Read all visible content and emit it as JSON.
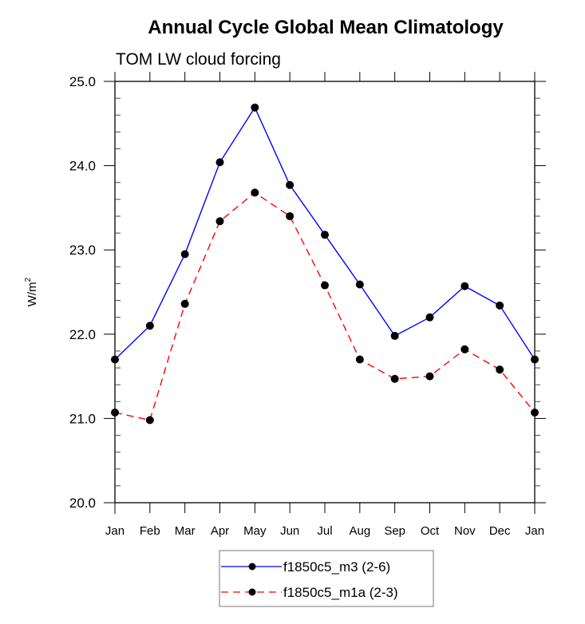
{
  "chart_data": {
    "type": "line",
    "title": "Annual Cycle Global Mean Climatology",
    "subtitle": "TOM LW cloud forcing",
    "xlabel": "",
    "ylabel": "W/m",
    "ylabel_superscript": "2",
    "categories": [
      "Jan",
      "Feb",
      "Mar",
      "Apr",
      "May",
      "Jun",
      "Jul",
      "Aug",
      "Sep",
      "Oct",
      "Nov",
      "Dec",
      "Jan"
    ],
    "ylim": [
      20.0,
      25.0
    ],
    "yticks": [
      20.0,
      21.0,
      22.0,
      23.0,
      24.0,
      25.0
    ],
    "ytick_labels": [
      "20.0",
      "21.0",
      "22.0",
      "23.0",
      "24.0",
      "25.0"
    ],
    "y_minor_step": 0.2,
    "grid": false,
    "legend_position": "bottom-center",
    "series": [
      {
        "name": "f1850c5_m3 (2-6)",
        "color": "#0000ff",
        "dash": "solid",
        "marker": "filled-circle",
        "marker_color": "#000000",
        "values": [
          21.7,
          22.1,
          22.95,
          24.04,
          24.69,
          23.77,
          23.18,
          22.59,
          21.98,
          22.2,
          22.57,
          22.34,
          21.7
        ]
      },
      {
        "name": "f1850c5_m1a (2-3)",
        "color": "#ff0000",
        "dash": "dashed",
        "marker": "filled-circle",
        "marker_color": "#000000",
        "values": [
          21.07,
          20.98,
          22.36,
          23.34,
          23.68,
          23.4,
          22.58,
          21.7,
          21.47,
          21.5,
          21.82,
          21.58,
          21.07
        ]
      }
    ]
  }
}
